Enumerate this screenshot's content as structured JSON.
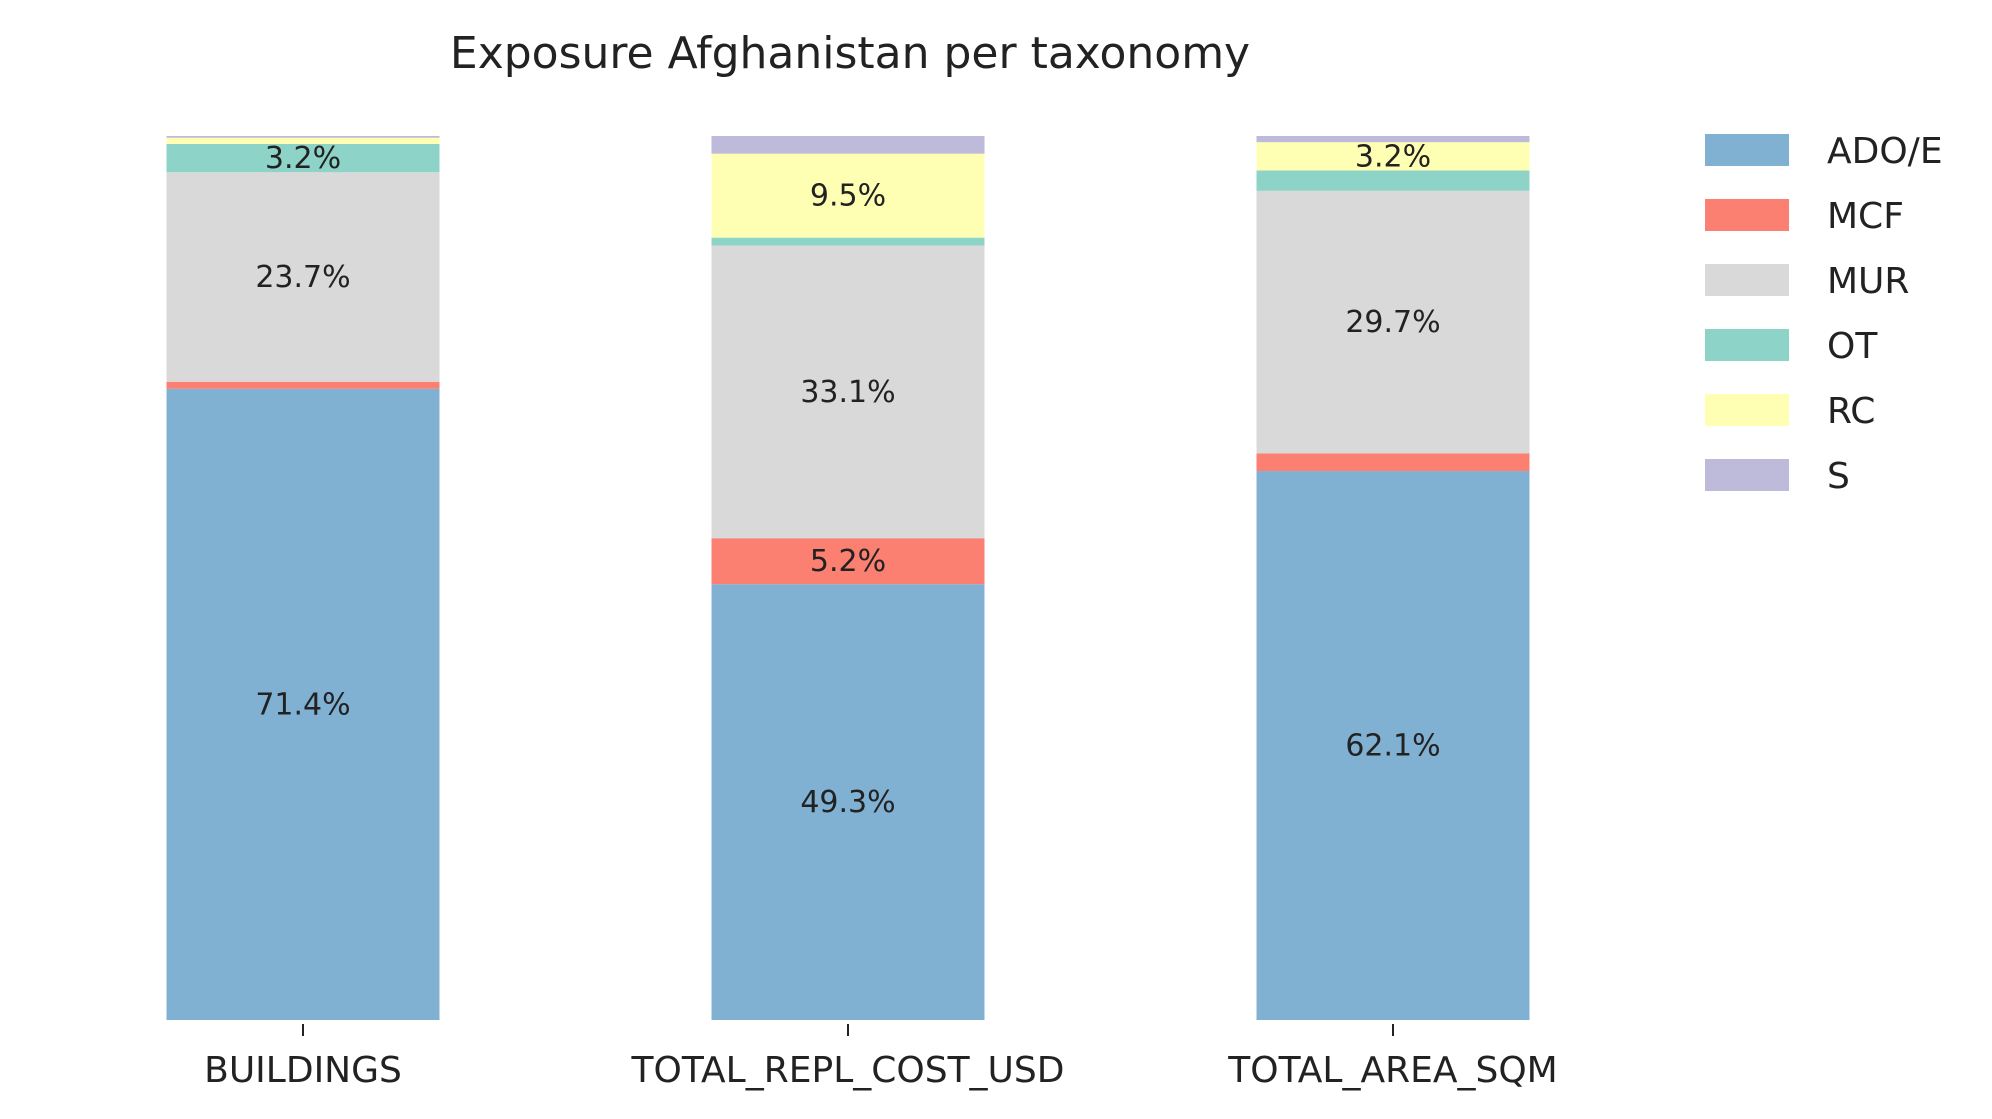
{
  "chart_data": {
    "type": "bar",
    "stacked": true,
    "normalized": true,
    "title": "Exposure Afghanistan per taxonomy",
    "xlabel": "",
    "ylabel": "",
    "ylim": [
      0,
      100
    ],
    "categories": [
      "BUILDINGS",
      "TOTAL_REPL_COST_USD",
      "TOTAL_AREA_SQM"
    ],
    "series": [
      {
        "name": "ADO/E",
        "color": "#80b1d3",
        "values": [
          71.4,
          49.3,
          62.1
        ],
        "labels": [
          "71.4%",
          "49.3%",
          "62.1%"
        ]
      },
      {
        "name": "MCF",
        "color": "#fb8072",
        "values": [
          0.8,
          5.2,
          2.0
        ],
        "labels": [
          "",
          "5.2%",
          ""
        ]
      },
      {
        "name": "MUR",
        "color": "#d9d9d9",
        "values": [
          23.7,
          33.1,
          29.7
        ],
        "labels": [
          "23.7%",
          "33.1%",
          "29.7%"
        ]
      },
      {
        "name": "OT",
        "color": "#8dd3c7",
        "values": [
          3.2,
          0.9,
          2.3
        ],
        "labels": [
          "3.2%",
          "",
          ""
        ]
      },
      {
        "name": "RC",
        "color": "#ffffb3",
        "values": [
          0.7,
          9.5,
          3.2
        ],
        "labels": [
          "",
          "9.5%",
          "3.2%"
        ]
      },
      {
        "name": "S",
        "color": "#bebada",
        "values": [
          0.2,
          2.0,
          0.7
        ],
        "labels": [
          "",
          "",
          ""
        ]
      }
    ],
    "legend_position": "right",
    "grid": false
  }
}
